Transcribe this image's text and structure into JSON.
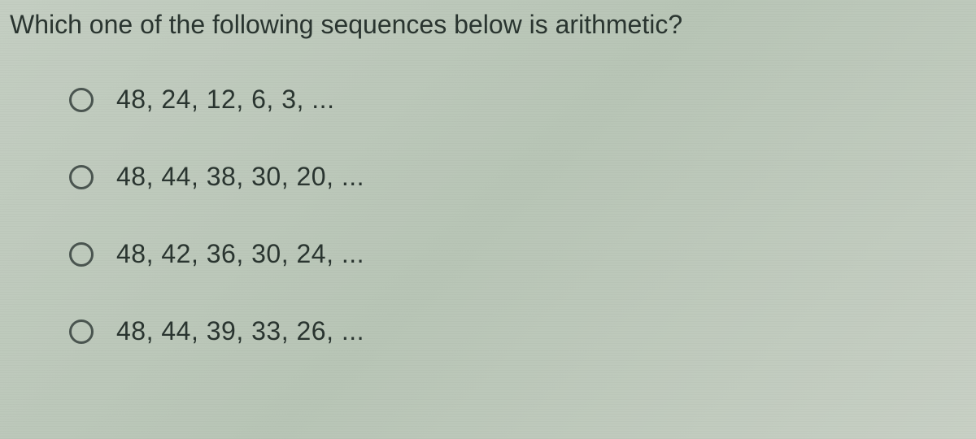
{
  "question": {
    "prompt": "Which one of the following sequences below is arithmetic?"
  },
  "options": [
    {
      "label": "48, 24, 12, 6, 3, ..."
    },
    {
      "label": "48, 44, 38, 30, 20, ..."
    },
    {
      "label": "48, 42, 36, 30, 24, ..."
    },
    {
      "label": "48, 44, 39, 33, 26, ..."
    }
  ],
  "styling": {
    "background_gradient_start": "#c4cec2",
    "background_gradient_mid": "#b8c5b6",
    "background_gradient_end": "#c8d0c5",
    "text_color": "#2a3530",
    "radio_border_color": "#4a5550",
    "question_fontsize": 32,
    "option_fontsize": 32,
    "radio_size": 30,
    "radio_border_width": 3
  }
}
